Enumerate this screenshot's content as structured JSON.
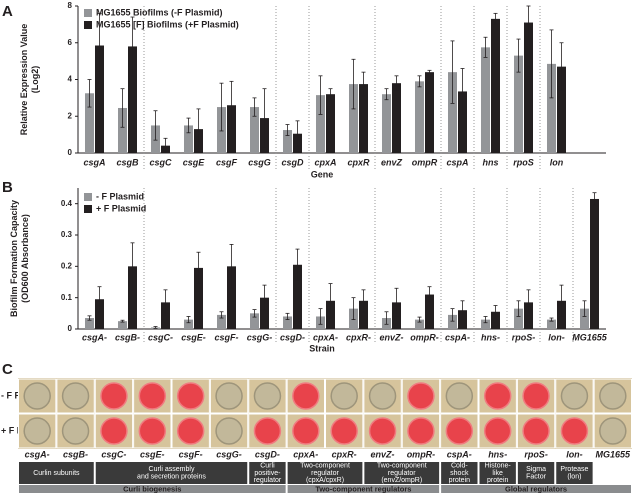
{
  "chart_data": [
    {
      "type": "bar",
      "label": "A",
      "ylabel": [
        "Relative Expression Value",
        "(Log2)"
      ],
      "xlabel": "Gene",
      "categories": [
        "csgA",
        "csgB",
        "csgC",
        "csgE",
        "csgF",
        "csgG",
        "csgD",
        "cpxA",
        "cpxR",
        "envZ",
        "ompR",
        "cspA",
        "hns",
        "rpoS",
        "lon"
      ],
      "series": [
        {
          "name": "MG1655 Biofilms (-F Plasmid)",
          "color": "#939598",
          "values": [
            3.25,
            2.45,
            1.5,
            1.5,
            2.5,
            2.5,
            1.25,
            3.15,
            3.75,
            3.2,
            3.9,
            4.4,
            5.75,
            5.3,
            4.85
          ],
          "errors": [
            0.75,
            1.05,
            0.8,
            0.4,
            1.3,
            0.5,
            0.3,
            1.05,
            1.35,
            0.3,
            0.3,
            1.7,
            0.55,
            0.9,
            1.85
          ]
        },
        {
          "name": "MG1655 [F] Biofilms (+F Plasmid)",
          "color": "#231f20",
          "values": [
            5.85,
            5.8,
            0.4,
            1.3,
            2.6,
            1.9,
            1.05,
            3.2,
            3.75,
            3.8,
            4.4,
            3.35,
            7.3,
            7.1,
            4.7
          ],
          "errors": [
            1.75,
            1.6,
            0.4,
            1.1,
            1.3,
            1.6,
            0.7,
            0.3,
            0.65,
            0.4,
            0.1,
            1.25,
            0.3,
            0.9,
            1.3
          ]
        }
      ],
      "ylim": [
        0,
        8
      ],
      "yticks": [
        0,
        2,
        4,
        6,
        8
      ],
      "legend": "top-left"
    },
    {
      "type": "bar",
      "label": "B",
      "ylabel": [
        "Biofilm Formation Capacity",
        "(OD600 Absorbance)"
      ],
      "xlabel": "Strain",
      "categories": [
        "csgA-",
        "csgB-",
        "csgC-",
        "csgE-",
        "csgF-",
        "csgG-",
        "csgD-",
        "cpxA-",
        "cpxR-",
        "envZ-",
        "ompR-",
        "cspA-",
        "hns-",
        "rpoS-",
        "lon-",
        "MG1655"
      ],
      "series": [
        {
          "name": "- F Plasmid",
          "color": "#939598",
          "values": [
            0.035,
            0.025,
            0.005,
            0.03,
            0.045,
            0.05,
            0.04,
            0.04,
            0.065,
            0.035,
            0.03,
            0.045,
            0.03,
            0.065,
            0.03,
            0.065
          ],
          "errors": [
            0.007,
            0.003,
            0.003,
            0.01,
            0.01,
            0.012,
            0.01,
            0.025,
            0.035,
            0.02,
            0.008,
            0.02,
            0.01,
            0.025,
            0.005,
            0.025
          ]
        },
        {
          "name": "+ F Plasmid",
          "color": "#231f20",
          "values": [
            0.095,
            0.2,
            0.085,
            0.195,
            0.2,
            0.1,
            0.205,
            0.09,
            0.09,
            0.085,
            0.11,
            0.06,
            0.055,
            0.085,
            0.09,
            0.415
          ],
          "errors": [
            0.04,
            0.075,
            0.04,
            0.05,
            0.07,
            0.04,
            0.05,
            0.055,
            0.035,
            0.045,
            0.025,
            0.03,
            0.02,
            0.04,
            0.05,
            0.02
          ]
        }
      ],
      "ylim": [
        0,
        0.45
      ],
      "yticks": [
        0,
        0.1,
        0.2,
        0.3,
        0.4
      ],
      "legend": "top-left"
    }
  ],
  "panel_c": {
    "label": "C",
    "rows": [
      "- F Plasmid",
      "+ F Plasmid"
    ],
    "strains": [
      "csgA-",
      "csgB-",
      "csgC-",
      "csgE-",
      "csgF-",
      "csgG-",
      "csgD-",
      "cpxA-",
      "cpxR-",
      "envZ-",
      "ompR-",
      "cspA-",
      "hns-",
      "rpoS-",
      "lon-",
      "MG1655"
    ],
    "groups": [
      [
        "Curlin subunits"
      ],
      [
        "Curli assembly",
        "and secretion proteins"
      ],
      [
        "Curli",
        "positive-",
        "regulator"
      ],
      [
        "Two-component",
        "regulator",
        "(cpxA/cpxR)"
      ],
      [
        "Two-component",
        "regulator",
        "(envZ/ompR)"
      ],
      [
        "Cold-",
        "shock",
        "protein"
      ],
      [
        "Histone-",
        "like",
        "protein"
      ],
      [
        "Sigma",
        "Factor"
      ],
      [
        "Protease",
        "(lon)"
      ]
    ],
    "categories": [
      "Curli biogenesis",
      "Two-component regulators",
      "Global regulators"
    ]
  }
}
